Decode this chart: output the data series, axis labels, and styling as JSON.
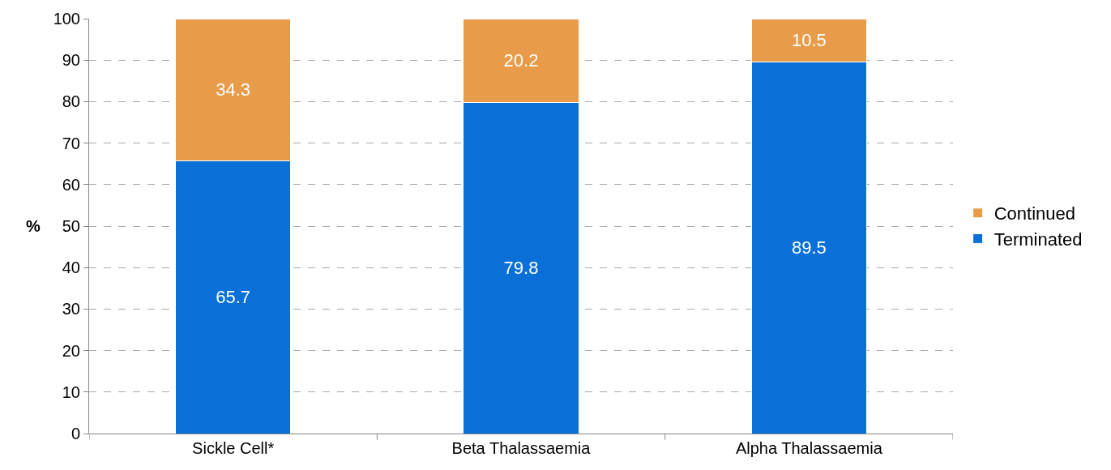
{
  "chart_data": {
    "type": "bar",
    "stacked": true,
    "ylabel": "%",
    "categories": [
      "Sickle Cell*",
      "Beta Thalassaemia",
      "Alpha Thalassaemia"
    ],
    "series": [
      {
        "name": "Terminated",
        "color": "#0a6fd6",
        "values": [
          65.7,
          79.8,
          89.5
        ]
      },
      {
        "name": "Continued",
        "color": "#e89c4a",
        "values": [
          34.3,
          20.2,
          10.5
        ]
      }
    ],
    "ylim": [
      0,
      100
    ],
    "yticks": [
      0,
      10,
      20,
      30,
      40,
      50,
      60,
      70,
      80,
      90,
      100
    ],
    "grid": "y",
    "legend": "right",
    "data_labels": true
  }
}
